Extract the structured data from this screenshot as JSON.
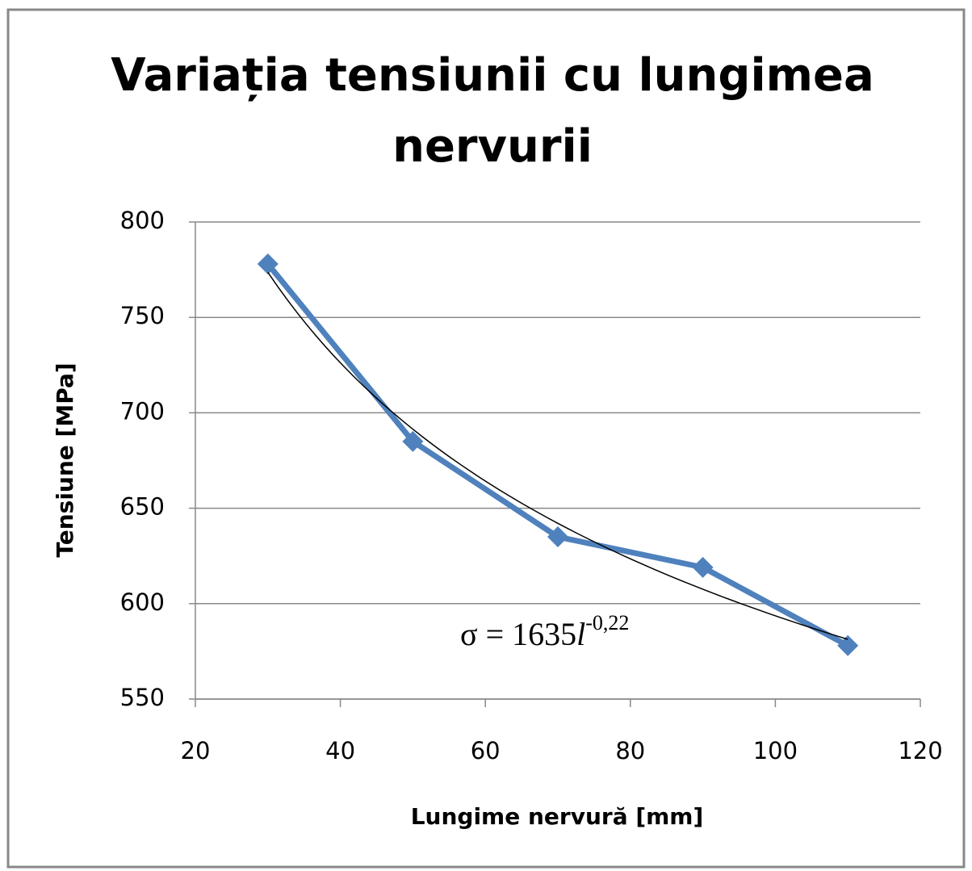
{
  "chart_data": {
    "type": "line",
    "title": "Variația tensiunii cu lungimea nervurii",
    "x_label": "Lungime nervură [mm]",
    "y_label": "Tensiune [MPa]",
    "x": [
      30,
      50,
      70,
      90,
      110
    ],
    "series": [
      {
        "name": "Tensiune",
        "color": "#4f81bd",
        "values": [
          778,
          685,
          635,
          619,
          578
        ]
      }
    ],
    "xlim": [
      20,
      120
    ],
    "xticks": [
      20,
      40,
      60,
      80,
      100,
      120
    ],
    "ylim": [
      550,
      800
    ],
    "yticks": [
      550,
      600,
      650,
      700,
      750,
      800
    ],
    "grid": true,
    "trendline": {
      "prefix": "σ = ",
      "coefficient": 1635,
      "variable": "l",
      "exponent": {
        "value": -0.22,
        "label": "-0,22"
      },
      "color": "#000000"
    }
  }
}
